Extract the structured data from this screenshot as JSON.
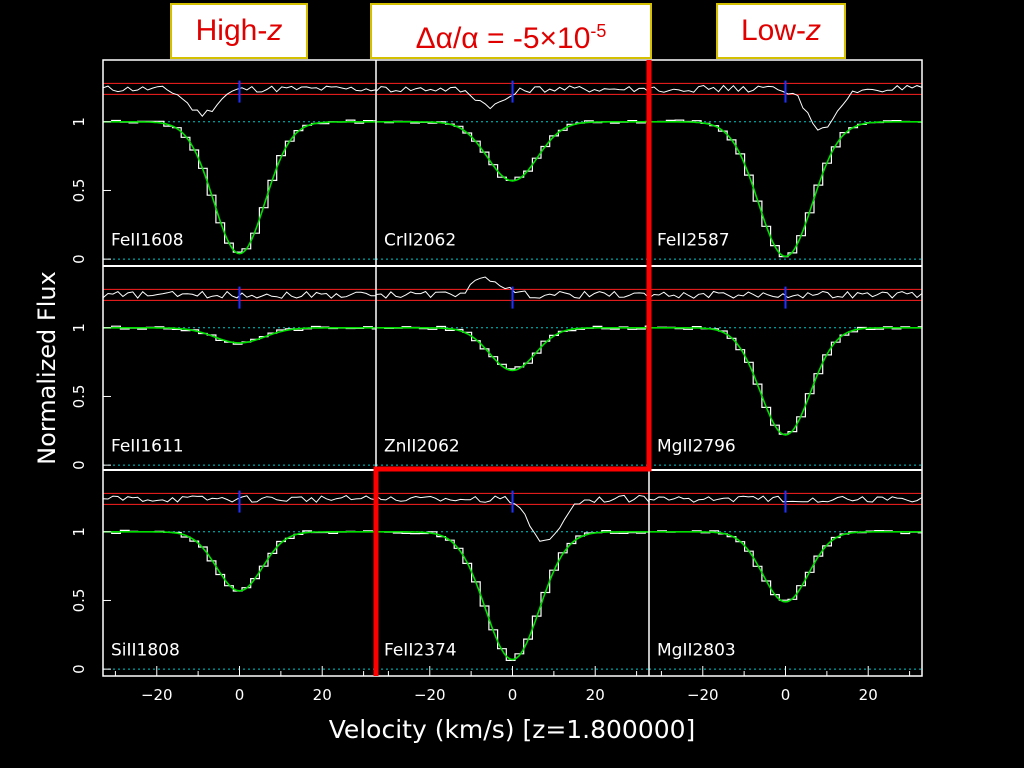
{
  "slide": {
    "label_high": {
      "text": "High-",
      "italic": "z"
    },
    "label_mid": {
      "delta_alpha": "Δα/α",
      "eq": " = -5×10",
      "exp": "-5"
    },
    "label_low": {
      "text": "Low-",
      "italic": "z"
    },
    "colors": {
      "box_text": "#e00000",
      "box_border": "#d4c000",
      "divider": "#ff0000",
      "fit": "#00e000",
      "residual_band": "#ff2020",
      "marker": "#2030ff",
      "baseline": "#00c8c8",
      "data": "#ffffff"
    }
  },
  "chart_data": {
    "type": "line",
    "xlabel": "Velocity  (km/s)  [z=1.800000]",
    "ylabel": "Normalized  Flux",
    "xlim": [
      -33,
      33
    ],
    "ylim": [
      -0.05,
      1.45
    ],
    "xticks": [
      -20,
      0,
      20
    ],
    "yticks": [
      0,
      0.5,
      1
    ],
    "grid": false,
    "panels": [
      {
        "name": "FeII1608",
        "row": 0,
        "col": 0,
        "depth": 0.96,
        "center": 0,
        "width": 6.2,
        "residual_feature": {
          "v": -9,
          "amp": -0.18
        }
      },
      {
        "name": "CrII2062",
        "row": 0,
        "col": 1,
        "depth": 0.43,
        "center": 0,
        "width": 6.0,
        "residual_feature": {
          "v": -5,
          "amp": -0.12
        }
      },
      {
        "name": "FeII2587",
        "row": 0,
        "col": 2,
        "depth": 0.98,
        "center": 0,
        "width": 6.5,
        "residual_feature": {
          "v": 9,
          "amp": -0.3
        }
      },
      {
        "name": "FeII1611",
        "row": 1,
        "col": 0,
        "depth": 0.11,
        "center": 0,
        "width": 6.0,
        "residual_feature": null
      },
      {
        "name": "ZnII2062",
        "row": 1,
        "col": 1,
        "depth": 0.31,
        "center": 0,
        "width": 5.5,
        "residual_feature": {
          "v": -6,
          "amp": 0.12
        }
      },
      {
        "name": "MgII2796",
        "row": 1,
        "col": 2,
        "depth": 0.78,
        "center": 0,
        "width": 6.0,
        "residual_feature": null
      },
      {
        "name": "SiII1808",
        "row": 2,
        "col": 0,
        "depth": 0.43,
        "center": 0,
        "width": 5.5,
        "residual_feature": null
      },
      {
        "name": "FeII2374",
        "row": 2,
        "col": 1,
        "depth": 0.93,
        "center": 0,
        "width": 6.5,
        "residual_feature": {
          "v": 8,
          "amp": -0.32
        }
      },
      {
        "name": "MgII2803",
        "row": 2,
        "col": 2,
        "depth": 0.51,
        "center": 0,
        "width": 5.5,
        "residual_feature": null
      }
    ]
  }
}
